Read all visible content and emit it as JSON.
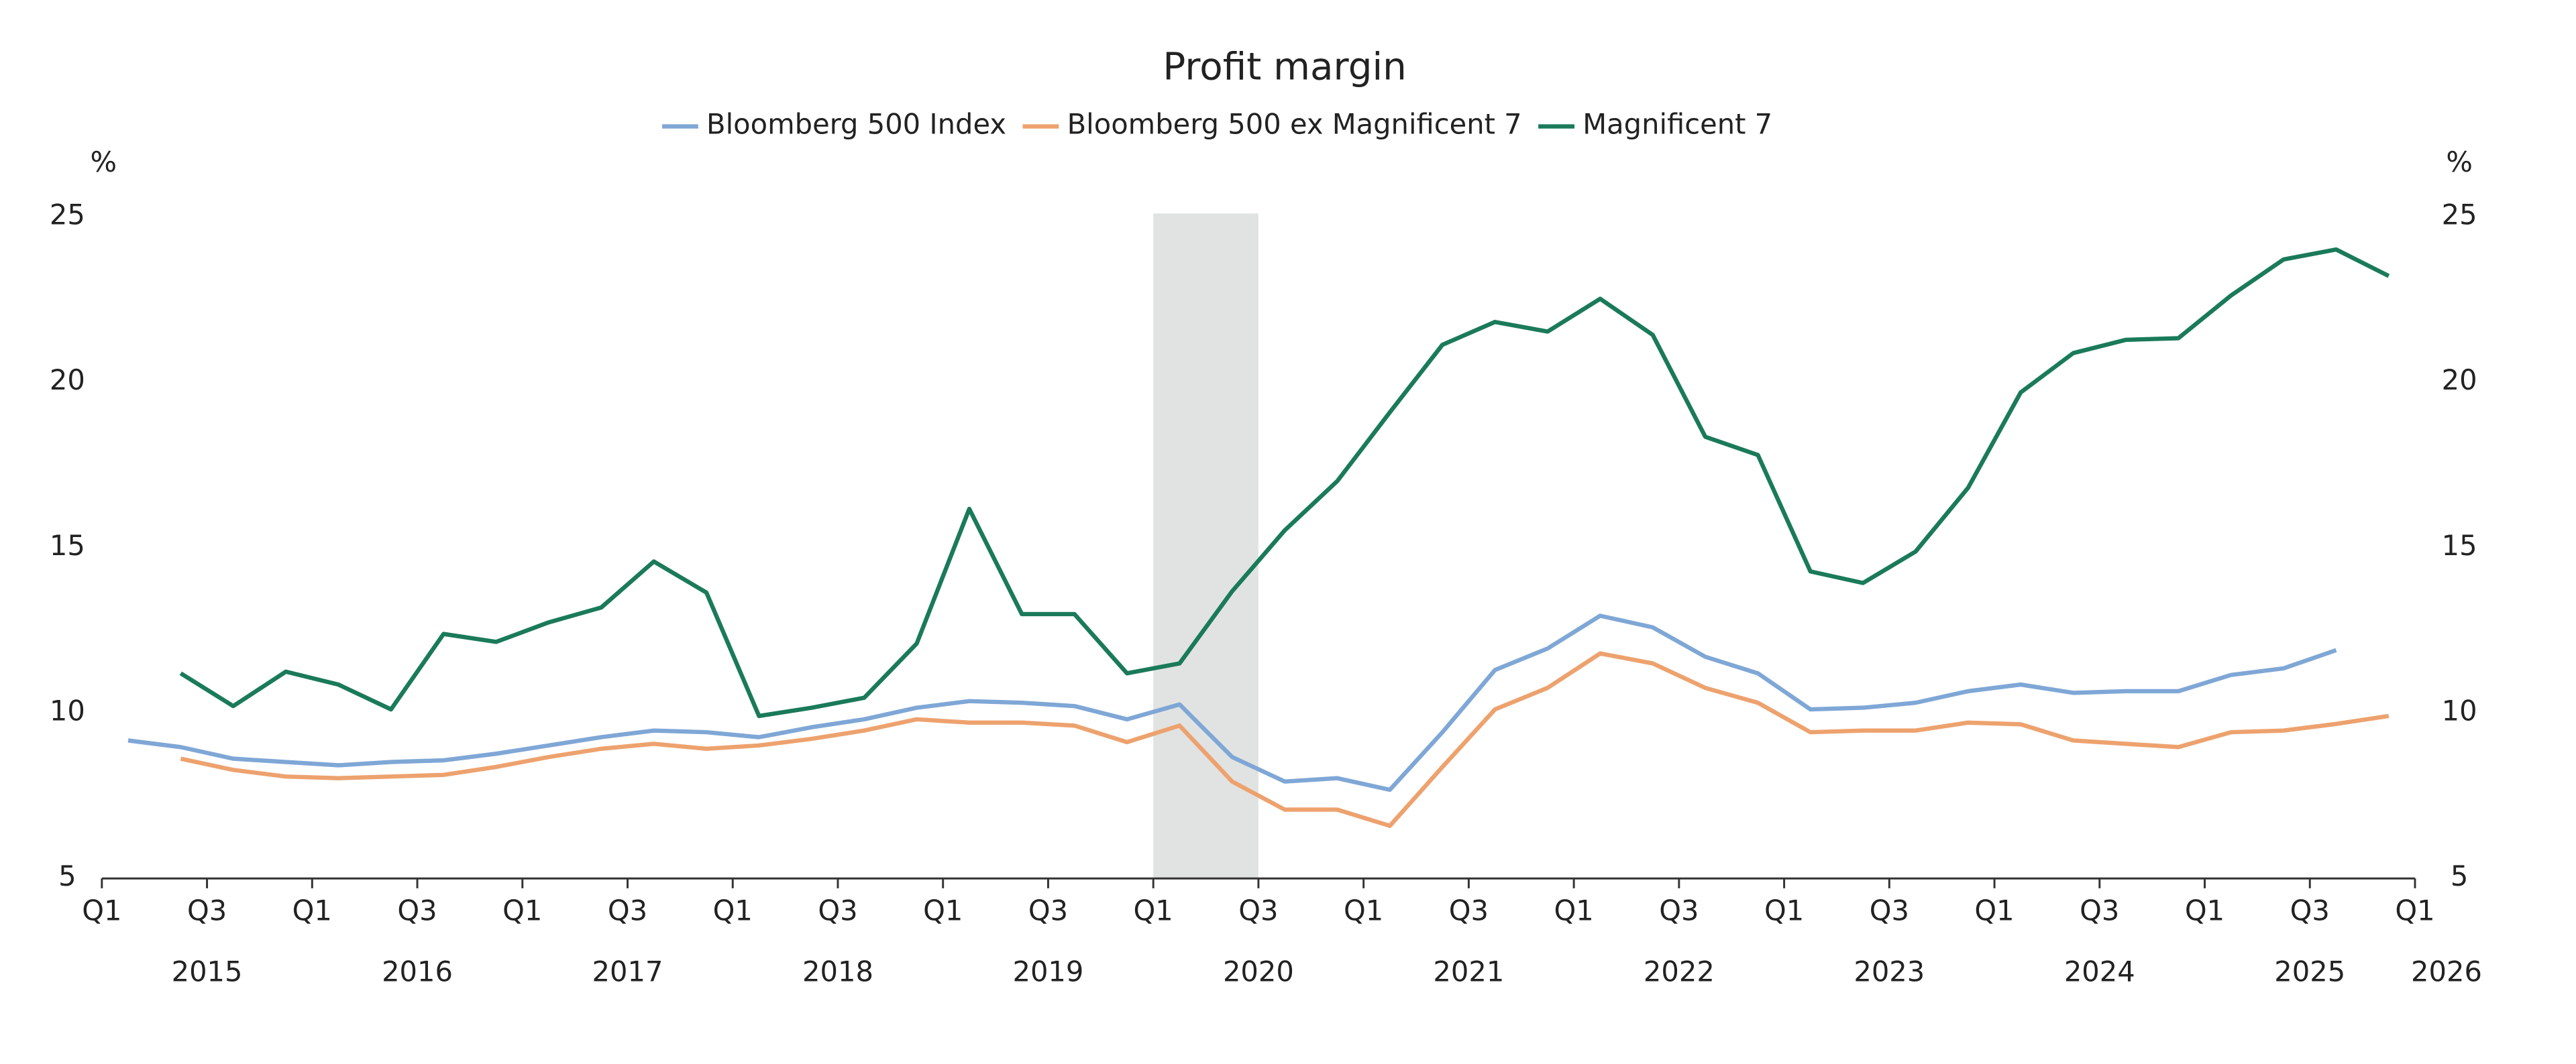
{
  "chart_data": {
    "type": "line",
    "title": "Profit margin",
    "y_label": "%",
    "y2_label": "%",
    "x": [
      2015.125,
      2015.375,
      2015.625,
      2015.875,
      2016.125,
      2016.375,
      2016.625,
      2016.875,
      2017.125,
      2017.375,
      2017.625,
      2017.875,
      2018.125,
      2018.375,
      2018.625,
      2018.875,
      2019.125,
      2019.375,
      2019.625,
      2019.875,
      2020.125,
      2020.375,
      2020.625,
      2020.875,
      2021.125,
      2021.375,
      2021.625,
      2021.875,
      2022.125,
      2022.375,
      2022.625,
      2022.875,
      2023.125,
      2023.375,
      2023.625,
      2023.875,
      2024.125,
      2024.375,
      2024.625,
      2024.875,
      2025.125,
      2025.375,
      2025.625,
      2025.875
    ],
    "series": [
      {
        "name": "Bloomberg 500 Index",
        "color": "#7fa7d6",
        "values": [
          9.17,
          8.97,
          8.62,
          8.52,
          8.42,
          8.52,
          8.57,
          8.77,
          9.02,
          9.27,
          9.47,
          9.42,
          9.27,
          9.57,
          9.81,
          10.16,
          10.36,
          10.31,
          10.21,
          9.81,
          10.26,
          8.67,
          7.93,
          8.03,
          7.68,
          9.42,
          11.3,
          11.95,
          12.94,
          12.59,
          11.7,
          11.2,
          10.11,
          10.16,
          10.31,
          10.66,
          10.86,
          10.61,
          10.66,
          10.66,
          11.15,
          11.35,
          11.9,
          null
        ]
      },
      {
        "name": "Bloomberg 500 ex Magnificent 7",
        "color": "#eda26e",
        "values": [
          null,
          8.62,
          8.28,
          8.08,
          8.03,
          8.08,
          8.13,
          8.37,
          8.67,
          8.92,
          9.07,
          8.92,
          9.02,
          9.22,
          9.47,
          9.81,
          9.71,
          9.71,
          9.62,
          9.12,
          9.62,
          7.93,
          7.08,
          7.08,
          6.59,
          8.37,
          10.11,
          10.76,
          11.8,
          11.5,
          10.76,
          10.31,
          9.42,
          9.47,
          9.47,
          9.71,
          9.66,
          9.17,
          9.07,
          8.97,
          9.42,
          9.47,
          9.67,
          9.91
        ]
      },
      {
        "name": "Magnificent 7",
        "color": "#1a7a5a",
        "values": [
          null,
          11.2,
          10.21,
          11.25,
          10.86,
          10.11,
          12.39,
          12.15,
          12.74,
          13.19,
          14.58,
          13.64,
          9.91,
          10.16,
          10.46,
          12.1,
          16.17,
          12.99,
          12.99,
          11.2,
          11.5,
          13.68,
          15.52,
          17.01,
          19.09,
          21.13,
          21.82,
          21.53,
          22.52,
          21.43,
          18.35,
          17.8,
          14.28,
          13.93,
          14.88,
          16.81,
          19.69,
          20.88,
          21.28,
          21.33,
          22.62,
          23.71,
          24.01,
          23.21
        ]
      }
    ],
    "xlim": [
      2015,
      2026
    ],
    "xticks": [
      {
        "value": 2015,
        "label": "Q1"
      },
      {
        "value": 2015.5,
        "label": "Q3"
      },
      {
        "value": 2016,
        "label": "Q1"
      },
      {
        "value": 2016.5,
        "label": "Q3"
      },
      {
        "value": 2017,
        "label": "Q1"
      },
      {
        "value": 2017.5,
        "label": "Q3"
      },
      {
        "value": 2018,
        "label": "Q1"
      },
      {
        "value": 2018.5,
        "label": "Q3"
      },
      {
        "value": 2019,
        "label": "Q1"
      },
      {
        "value": 2019.5,
        "label": "Q3"
      },
      {
        "value": 2020,
        "label": "Q1"
      },
      {
        "value": 2020.5,
        "label": "Q3"
      },
      {
        "value": 2021,
        "label": "Q1"
      },
      {
        "value": 2021.5,
        "label": "Q3"
      },
      {
        "value": 2022,
        "label": "Q1"
      },
      {
        "value": 2022.5,
        "label": "Q3"
      },
      {
        "value": 2023,
        "label": "Q1"
      },
      {
        "value": 2023.5,
        "label": "Q3"
      },
      {
        "value": 2024,
        "label": "Q1"
      },
      {
        "value": 2024.5,
        "label": "Q3"
      },
      {
        "value": 2025,
        "label": "Q1"
      },
      {
        "value": 2025.5,
        "label": "Q3"
      },
      {
        "value": 2026,
        "label": "Q1"
      }
    ],
    "x_year_labels": [
      {
        "value": 2015.5,
        "label": "2015"
      },
      {
        "value": 2016.5,
        "label": "2016"
      },
      {
        "value": 2017.5,
        "label": "2017"
      },
      {
        "value": 2018.5,
        "label": "2018"
      },
      {
        "value": 2019.5,
        "label": "2019"
      },
      {
        "value": 2020.5,
        "label": "2020"
      },
      {
        "value": 2021.5,
        "label": "2021"
      },
      {
        "value": 2022.5,
        "label": "2022"
      },
      {
        "value": 2023.5,
        "label": "2023"
      },
      {
        "value": 2024.5,
        "label": "2024"
      },
      {
        "value": 2025.5,
        "label": "2025"
      },
      {
        "value": 2026.15,
        "label": "2026"
      }
    ],
    "ylim": [
      5,
      25
    ],
    "yticks": [
      5,
      10,
      15,
      20,
      25
    ],
    "y2lim": [
      5,
      25
    ],
    "y2ticks": [
      5,
      10,
      15,
      20,
      25
    ],
    "shaded_span": [
      2020,
      2020.5
    ],
    "shade_color": "#e1e3e3",
    "grid": false
  }
}
